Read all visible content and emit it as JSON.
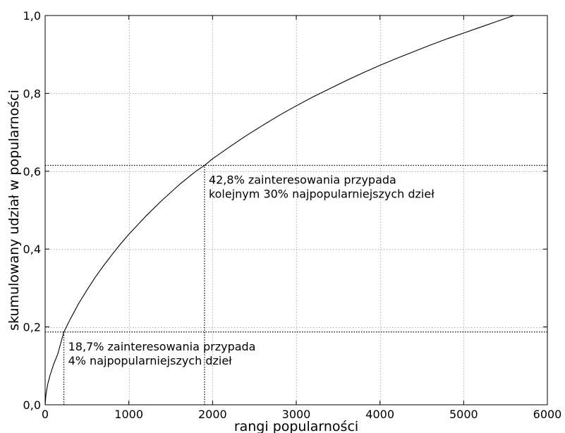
{
  "chart_data": {
    "type": "line",
    "title": "",
    "xlabel": "rangi popularności",
    "ylabel": "skumulowany udział w popularności",
    "xlim": [
      0,
      6000
    ],
    "ylim": [
      0,
      1.0
    ],
    "xticks": [
      0,
      1000,
      2000,
      3000,
      4000,
      5000,
      6000
    ],
    "xtick_labels": [
      "0",
      "1000",
      "2000",
      "3000",
      "4000",
      "5000",
      "6000"
    ],
    "yticks": [
      0,
      0.2,
      0.4,
      0.6,
      0.8,
      1.0
    ],
    "ytick_labels": [
      "0,0",
      "0,2",
      "0,4",
      "0,6",
      "0,8",
      "1,0"
    ],
    "grid": true,
    "legend": "none",
    "series": [
      {
        "x": [
          0,
          10,
          30,
          60,
          100,
          150,
          224,
          300,
          400,
          500,
          600,
          700,
          800,
          900,
          1000,
          1200,
          1400,
          1600,
          1800,
          1904,
          2000,
          2200,
          2400,
          2600,
          2800,
          3000,
          3200,
          3400,
          3600,
          3800,
          4000,
          4200,
          4400,
          4600,
          4800,
          5000,
          5200,
          5400,
          5600
        ],
        "y": [
          0,
          0.027,
          0.052,
          0.077,
          0.103,
          0.13,
          0.187,
          0.22,
          0.26,
          0.295,
          0.328,
          0.358,
          0.386,
          0.413,
          0.438,
          0.484,
          0.526,
          0.565,
          0.6,
          0.615,
          0.632,
          0.662,
          0.691,
          0.718,
          0.744,
          0.768,
          0.791,
          0.812,
          0.833,
          0.853,
          0.872,
          0.89,
          0.907,
          0.924,
          0.94,
          0.955,
          0.97,
          0.985,
          1.0
        ],
        "color": "#000000"
      }
    ],
    "reference_lines": [
      {
        "type": "horizontal",
        "y": 0.187,
        "x_from": 0,
        "x_to": 6000
      },
      {
        "type": "vertical",
        "x": 224,
        "y_from": 0,
        "y_to": 0.187
      },
      {
        "type": "horizontal",
        "y": 0.615,
        "x_from": 0,
        "x_to": 6000
      },
      {
        "type": "vertical",
        "x": 1904,
        "y_from": 0,
        "y_to": 0.615
      }
    ],
    "annotations": [
      {
        "x": 224,
        "y": 0.187,
        "lines": [
          "18,7% zainteresowania przypada",
          "4% najpopularniejszych dzieł"
        ]
      },
      {
        "x": 1904,
        "y": 0.615,
        "lines": [
          "42,8% zainteresowania przypada",
          "kolejnym 30% najpopularniejszych dzieł"
        ]
      }
    ]
  }
}
